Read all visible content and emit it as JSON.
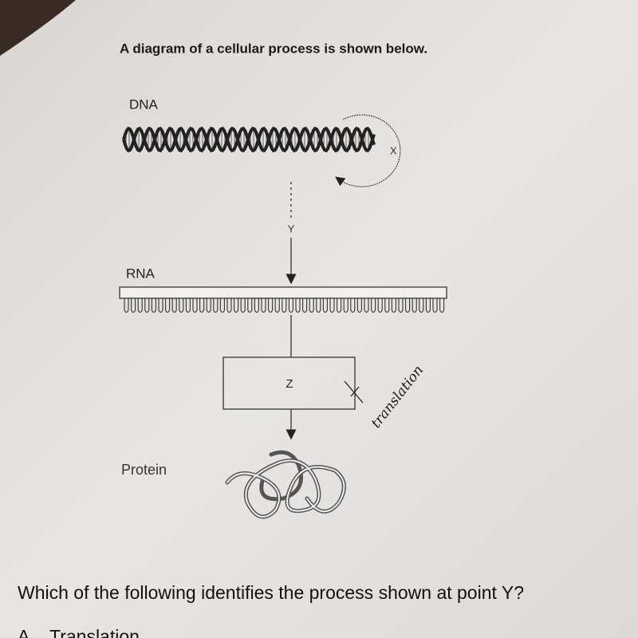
{
  "header": {
    "title": "A diagram of a cellular process is shown below."
  },
  "diagram": {
    "dna": "DNA",
    "x": "X",
    "y": "Y",
    "rna": "RNA",
    "z": "Z",
    "protein": "Protein",
    "handwritten_note": "translation"
  },
  "question": {
    "text": "Which of the following identifies the process shown at point Y?",
    "options": [
      {
        "letter": "A.",
        "text": "Translation"
      }
    ]
  }
}
